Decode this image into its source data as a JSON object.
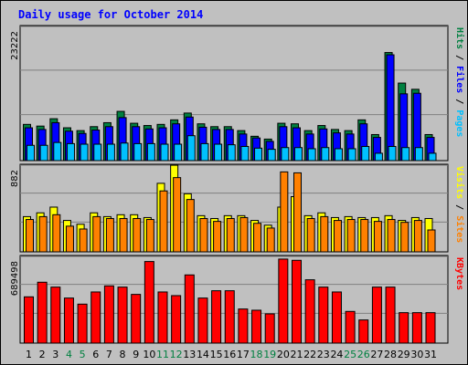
{
  "title": "Daily usage for October 2014",
  "colors": {
    "background": "#c0c0c0",
    "plot": "#c0c0c0",
    "hits": "#008040",
    "files": "#0000ff",
    "pages": "#00c0ff",
    "visits": "#ffff00",
    "sites": "#ff8000",
    "kbytes": "#ff0000",
    "title": "#0000ff",
    "weekend": "#008040",
    "weekday": "#000000"
  },
  "chart_data": [
    {
      "type": "bar",
      "panel": "hits-files-pages",
      "ymax_label": "23222",
      "ymax": 23222,
      "legend": [
        {
          "text": "Pages",
          "color": "#00c0ff"
        },
        {
          "text": " / ",
          "color": "#000000"
        },
        {
          "text": "Files",
          "color": "#0000ff"
        },
        {
          "text": " / ",
          "color": "#000000"
        },
        {
          "text": "Hits",
          "color": "#008040"
        }
      ],
      "categories": [
        "1",
        "2",
        "3",
        "4",
        "5",
        "6",
        "7",
        "8",
        "9",
        "10",
        "11",
        "12",
        "13",
        "14",
        "15",
        "16",
        "17",
        "18",
        "19",
        "20",
        "21",
        "22",
        "23",
        "24",
        "25",
        "26",
        "27",
        "28",
        "29",
        "30",
        "31"
      ],
      "series": [
        {
          "name": "Hits",
          "values": [
            6400,
            6100,
            7400,
            5800,
            5300,
            6000,
            6700,
            8700,
            6600,
            6200,
            6400,
            7200,
            8400,
            6500,
            6000,
            6000,
            5300,
            4300,
            3800,
            6600,
            6500,
            5300,
            6200,
            5500,
            5300,
            7200,
            4600,
            19100,
            13700,
            12600,
            4600
          ]
        },
        {
          "name": "Files",
          "values": [
            5800,
            5500,
            6700,
            5200,
            4800,
            5400,
            6000,
            7600,
            6000,
            5600,
            5800,
            6500,
            7700,
            5900,
            5500,
            5500,
            4700,
            4000,
            3400,
            6000,
            5800,
            4700,
            5600,
            4900,
            4700,
            6500,
            4100,
            18700,
            11800,
            11900,
            4100
          ]
        },
        {
          "name": "Pages",
          "values": [
            2700,
            2700,
            3200,
            3000,
            2900,
            2900,
            2900,
            3100,
            3000,
            3000,
            2900,
            2900,
            4400,
            3000,
            2900,
            2800,
            2500,
            2200,
            2000,
            2300,
            2300,
            2100,
            2300,
            2100,
            2100,
            2500,
            1300,
            2500,
            2300,
            2300,
            1300
          ]
        }
      ]
    },
    {
      "type": "bar",
      "panel": "visits-sites",
      "ymax_label": "882",
      "ymax": 882,
      "legend": [
        {
          "text": "Sites",
          "color": "#ff8000"
        },
        {
          "text": " / ",
          "color": "#000000"
        },
        {
          "text": "Visits",
          "color": "#ffff00"
        }
      ],
      "categories": [
        "1",
        "2",
        "3",
        "4",
        "5",
        "6",
        "7",
        "8",
        "9",
        "10",
        "11",
        "12",
        "13",
        "14",
        "15",
        "16",
        "17",
        "18",
        "19",
        "20",
        "21",
        "22",
        "23",
        "24",
        "25",
        "26",
        "27",
        "28",
        "29",
        "30",
        "31"
      ],
      "series": [
        {
          "name": "Visits",
          "values": [
            370,
            410,
            470,
            330,
            290,
            410,
            370,
            390,
            390,
            360,
            720,
            910,
            610,
            380,
            350,
            380,
            380,
            330,
            280,
            470,
            580,
            380,
            410,
            360,
            370,
            360,
            360,
            380,
            330,
            360,
            350
          ]
        },
        {
          "name": "Sites",
          "values": [
            340,
            370,
            390,
            270,
            240,
            370,
            350,
            350,
            350,
            340,
            640,
            780,
            550,
            350,
            320,
            350,
            360,
            300,
            250,
            840,
            830,
            350,
            370,
            330,
            340,
            340,
            320,
            340,
            310,
            330,
            230
          ]
        }
      ]
    },
    {
      "type": "bar",
      "panel": "kbytes",
      "ymax_label": "689498",
      "ymax": 689498,
      "legend": [
        {
          "text": "KBytes",
          "color": "#ff0000"
        }
      ],
      "categories": [
        "1",
        "2",
        "3",
        "4",
        "5",
        "6",
        "7",
        "8",
        "9",
        "10",
        "11",
        "12",
        "13",
        "14",
        "15",
        "16",
        "17",
        "18",
        "19",
        "20",
        "21",
        "22",
        "23",
        "24",
        "25",
        "26",
        "27",
        "28",
        "29",
        "30",
        "31"
      ],
      "series": [
        {
          "name": "KBytes",
          "values": [
            380000,
            500000,
            460000,
            370000,
            320000,
            420000,
            470000,
            460000,
            400000,
            670000,
            420000,
            390000,
            560000,
            370000,
            430000,
            430000,
            280000,
            270000,
            240000,
            690000,
            680000,
            520000,
            460000,
            420000,
            260000,
            190000,
            460000,
            460000,
            250000,
            250000,
            250000
          ]
        }
      ]
    }
  ],
  "day_label_colors": [
    "#000000",
    "#000000",
    "#000000",
    "#008040",
    "#008040",
    "#000000",
    "#000000",
    "#000000",
    "#000000",
    "#000000",
    "#008040",
    "#008040",
    "#000000",
    "#000000",
    "#000000",
    "#000000",
    "#000000",
    "#008040",
    "#008040",
    "#000000",
    "#000000",
    "#000000",
    "#000000",
    "#000000",
    "#008040",
    "#008040",
    "#000000",
    "#000000",
    "#000000",
    "#000000",
    "#000000"
  ]
}
